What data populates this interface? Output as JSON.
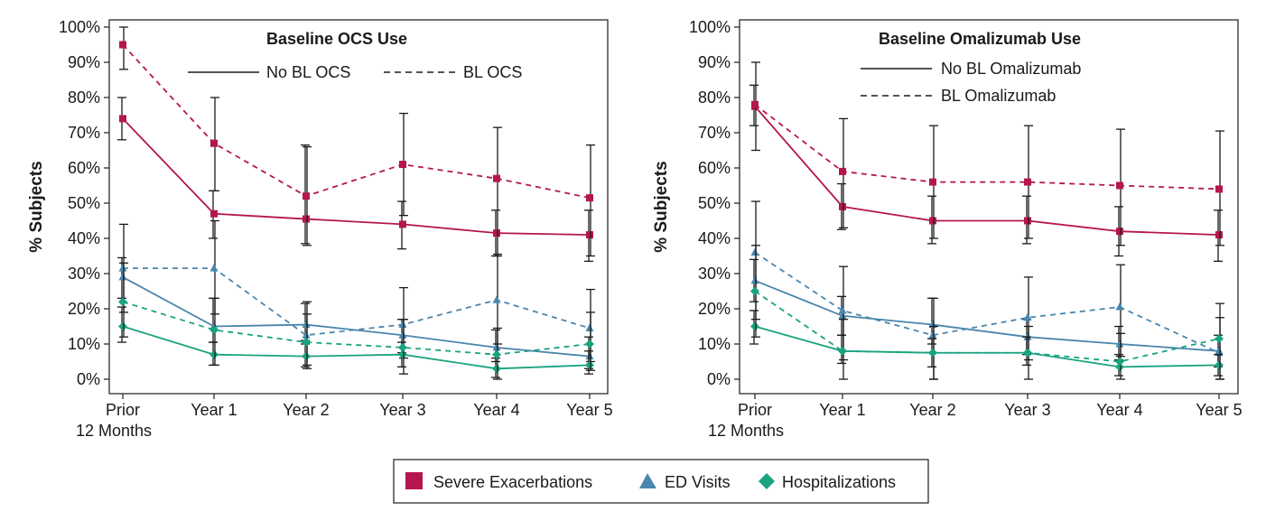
{
  "colors": {
    "severe": "#b5164f",
    "ed": "#4a86ad",
    "hosp": "#19a37f",
    "errorbar": "#1a1a1a"
  },
  "legend": {
    "items": [
      {
        "label": "Severe Exacerbations",
        "marker": "square",
        "color_key": "severe"
      },
      {
        "label": "ED Visits",
        "marker": "triangle",
        "color_key": "ed"
      },
      {
        "label": "Hospitalizations",
        "marker": "diamond",
        "color_key": "hosp"
      }
    ]
  },
  "chart_data": [
    {
      "type": "line",
      "title": "Baseline OCS Use",
      "ylabel": "% Subjects",
      "ylim": [
        0,
        100
      ],
      "yticks": [
        "0%",
        "10%",
        "20%",
        "30%",
        "40%",
        "50%",
        "60%",
        "70%",
        "80%",
        "90%",
        "100%"
      ],
      "categories": [
        [
          "Prior",
          "12 Months"
        ],
        [
          "Year 1"
        ],
        [
          "Year 2"
        ],
        [
          "Year 3"
        ],
        [
          "Year 4"
        ],
        [
          "Year 5"
        ]
      ],
      "line_styles": [
        {
          "label": "No BL OCS",
          "dash": "solid"
        },
        {
          "label": "BL OCS",
          "dash": "dashed"
        }
      ],
      "series": [
        {
          "measure": "severe",
          "style": "solid",
          "values": [
            74,
            47,
            45.5,
            44,
            41.5,
            41
          ],
          "err_low": [
            68,
            40,
            38.5,
            37,
            35,
            33.5
          ],
          "err_high": [
            80,
            53.5,
            66.5,
            50.5,
            48,
            48
          ]
        },
        {
          "measure": "severe",
          "style": "dashed",
          "values": [
            95,
            67,
            52,
            61,
            57,
            51.5
          ],
          "err_low": [
            88,
            53.5,
            38,
            46.5,
            35,
            35
          ],
          "err_high": [
            100,
            80,
            66,
            75.5,
            71.5,
            66.5
          ]
        },
        {
          "measure": "ed",
          "style": "solid",
          "values": [
            29,
            15,
            15.5,
            12.5,
            9,
            6.5
          ],
          "err_low": [
            23,
            10.5,
            10,
            7.5,
            5,
            3
          ],
          "err_high": [
            34.5,
            23,
            21.5,
            17,
            14,
            12
          ]
        },
        {
          "measure": "ed",
          "style": "dashed",
          "values": [
            31.5,
            31.5,
            12.5,
            15.5,
            22.5,
            14.5
          ],
          "err_low": [
            19,
            18.5,
            4,
            6,
            10,
            5
          ],
          "err_high": [
            44,
            45,
            22,
            26,
            35.5,
            25.5
          ]
        },
        {
          "measure": "hosp",
          "style": "solid",
          "values": [
            15,
            7,
            6.5,
            7,
            3,
            4
          ],
          "err_low": [
            10.5,
            4,
            3.5,
            3.5,
            0.5,
            1.5
          ],
          "err_high": [
            20.5,
            10.5,
            11,
            10.5,
            6,
            8
          ]
        },
        {
          "measure": "hosp",
          "style": "dashed",
          "values": [
            22,
            14,
            10.5,
            9,
            7,
            10
          ],
          "err_low": [
            12,
            4,
            3,
            1.5,
            0,
            2.5
          ],
          "err_high": [
            33,
            23,
            18.5,
            17,
            14.5,
            19
          ]
        }
      ]
    },
    {
      "type": "line",
      "title": "Baseline Omalizumab Use",
      "ylabel": "% Subjects",
      "ylim": [
        0,
        100
      ],
      "yticks": [
        "0%",
        "10%",
        "20%",
        "30%",
        "40%",
        "50%",
        "60%",
        "70%",
        "80%",
        "90%",
        "100%"
      ],
      "categories": [
        [
          "Prior",
          "12 Months"
        ],
        [
          "Year 1"
        ],
        [
          "Year 2"
        ],
        [
          "Year 3"
        ],
        [
          "Year 4"
        ],
        [
          "Year 5"
        ]
      ],
      "line_styles": [
        {
          "label": "No BL Omalizumab",
          "dash": "solid"
        },
        {
          "label": "BL Omalizumab",
          "dash": "dashed"
        }
      ],
      "series": [
        {
          "measure": "severe",
          "style": "solid",
          "values": [
            77.5,
            49,
            45,
            45,
            42,
            41
          ],
          "err_low": [
            72,
            42.5,
            38.5,
            38.5,
            35,
            33.5
          ],
          "err_high": [
            83.5,
            55.5,
            52,
            52,
            49,
            48
          ]
        },
        {
          "measure": "severe",
          "style": "dashed",
          "values": [
            78,
            59,
            56,
            56,
            55,
            54
          ],
          "err_low": [
            65,
            43,
            40,
            40,
            38,
            38
          ],
          "err_high": [
            90,
            74,
            72,
            72,
            71,
            70.5
          ]
        },
        {
          "measure": "ed",
          "style": "solid",
          "values": [
            28,
            18,
            15.5,
            12,
            10,
            8
          ],
          "err_low": [
            22,
            12.5,
            10,
            7,
            5.5,
            3.5
          ],
          "err_high": [
            34,
            23.5,
            23,
            17,
            15,
            12.5
          ]
        },
        {
          "measure": "ed",
          "style": "dashed",
          "values": [
            36,
            19.5,
            12.5,
            17.5,
            20.5,
            7.5
          ],
          "err_low": [
            17,
            5.5,
            0,
            5.5,
            6.5,
            0
          ],
          "err_high": [
            50.5,
            32,
            23,
            29,
            32.5,
            17.5
          ]
        },
        {
          "measure": "hosp",
          "style": "solid",
          "values": [
            15,
            8,
            7.5,
            7.5,
            3.5,
            4
          ],
          "err_low": [
            10,
            4.5,
            3.5,
            4,
            1,
            1
          ],
          "err_high": [
            19.5,
            12.5,
            11.5,
            12,
            7,
            7
          ]
        },
        {
          "measure": "hosp",
          "style": "dashed",
          "values": [
            25,
            8,
            7.5,
            7.5,
            5,
            11.5
          ],
          "err_low": [
            12,
            0,
            0,
            0,
            0,
            0
          ],
          "err_high": [
            38,
            17,
            15,
            15,
            13,
            21.5
          ]
        }
      ]
    }
  ]
}
